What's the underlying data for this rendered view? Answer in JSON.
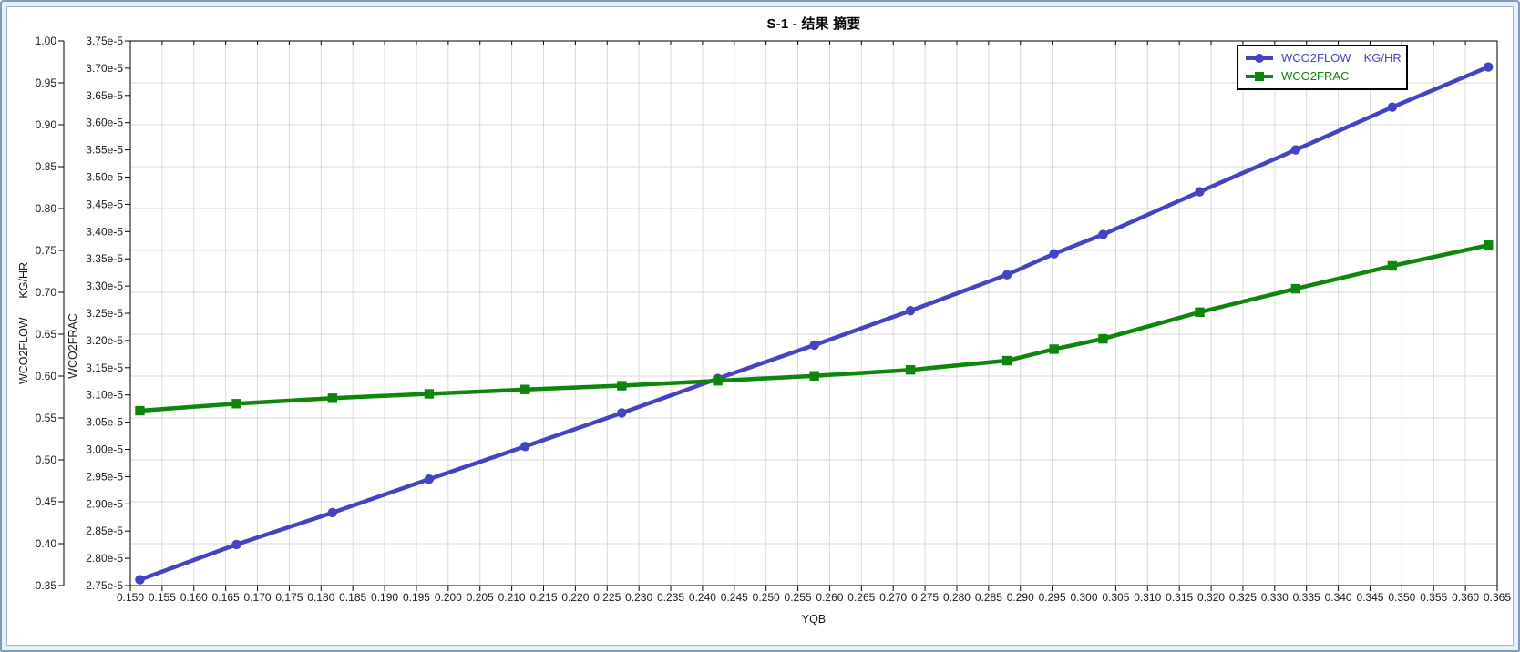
{
  "window": {
    "colors": {
      "frame_border": "#7e99c4",
      "frame_bg": "#e9eff8",
      "panel_border": "#9db4d2",
      "plot_bg": "#ffffff",
      "grid": "#d9d9d9",
      "axis": "#000000",
      "tick_text": "#1a1a1a"
    }
  },
  "chart_data": {
    "type": "line",
    "title": "S-1 - 结果 摘要",
    "xlabel": "YQB",
    "grid": "on",
    "legend_position": "top-right",
    "axes": {
      "x": {
        "label": "YQB",
        "min": 0.15,
        "max": 0.365,
        "tick_step": 0.005,
        "tick_labels": [
          "0.150",
          "0.155",
          "0.160",
          "0.165",
          "0.170",
          "0.175",
          "0.180",
          "0.185",
          "0.190",
          "0.195",
          "0.200",
          "0.205",
          "0.210",
          "0.215",
          "0.220",
          "0.225",
          "0.230",
          "0.235",
          "0.240",
          "0.245",
          "0.250",
          "0.255",
          "0.260",
          "0.265",
          "0.270",
          "0.275",
          "0.280",
          "0.285",
          "0.290",
          "0.295",
          "0.300",
          "0.305",
          "0.310",
          "0.315",
          "0.320",
          "0.325",
          "0.330",
          "0.335",
          "0.340",
          "0.345",
          "0.350",
          "0.355",
          "0.360",
          "0.365"
        ]
      },
      "y_flow": {
        "label": "WCO2FLOW",
        "units": "KG/HR",
        "min": 0.35,
        "max": 1.0,
        "tick_step": 0.05,
        "tick_labels": [
          "0.35",
          "0.40",
          "0.45",
          "0.50",
          "0.55",
          "0.60",
          "0.65",
          "0.70",
          "0.75",
          "0.80",
          "0.85",
          "0.90",
          "0.95",
          "1.00"
        ]
      },
      "y_frac": {
        "label": "WCO2FRAC",
        "units": "",
        "min": 2.75e-05,
        "max": 3.75e-05,
        "tick_step": 5e-07,
        "tick_labels": [
          "2.75e-5",
          "2.80e-5",
          "2.85e-5",
          "2.90e-5",
          "2.95e-5",
          "3.00e-5",
          "3.05e-5",
          "3.10e-5",
          "3.15e-5",
          "3.20e-5",
          "3.25e-5",
          "3.30e-5",
          "3.35e-5",
          "3.40e-5",
          "3.45e-5",
          "3.50e-5",
          "3.55e-5",
          "3.60e-5",
          "3.65e-5",
          "3.70e-5",
          "3.75e-5"
        ]
      }
    },
    "series": [
      {
        "name": "WCO2FLOW",
        "units": "KG/HR",
        "axis": "y_flow",
        "color": "#4343c3",
        "marker": "circle",
        "x": [
          0.1515,
          0.1667,
          0.1818,
          0.197,
          0.2121,
          0.2273,
          0.2424,
          0.2576,
          0.2727,
          0.2879,
          0.2953,
          0.303,
          0.3182,
          0.3333,
          0.3485,
          0.3636
        ],
        "y": [
          0.357,
          0.399,
          0.437,
          0.477,
          0.516,
          0.556,
          0.597,
          0.637,
          0.678,
          0.721,
          0.746,
          0.769,
          0.82,
          0.87,
          0.921,
          0.969
        ]
      },
      {
        "name": "WCO2FRAC",
        "units": "",
        "axis": "y_frac",
        "color": "#0c870c",
        "marker": "square",
        "x": [
          0.1515,
          0.1667,
          0.1818,
          0.197,
          0.2121,
          0.2273,
          0.2424,
          0.2576,
          0.2727,
          0.2879,
          0.2953,
          0.303,
          0.3182,
          0.3333,
          0.3485,
          0.3636
        ],
        "y": [
          3.071e-05,
          3.084e-05,
          3.094e-05,
          3.102e-05,
          3.11e-05,
          3.117e-05,
          3.126e-05,
          3.135e-05,
          3.146e-05,
          3.163e-05,
          3.184e-05,
          3.203e-05,
          3.252e-05,
          3.295e-05,
          3.337e-05,
          3.375e-05
        ]
      }
    ]
  }
}
